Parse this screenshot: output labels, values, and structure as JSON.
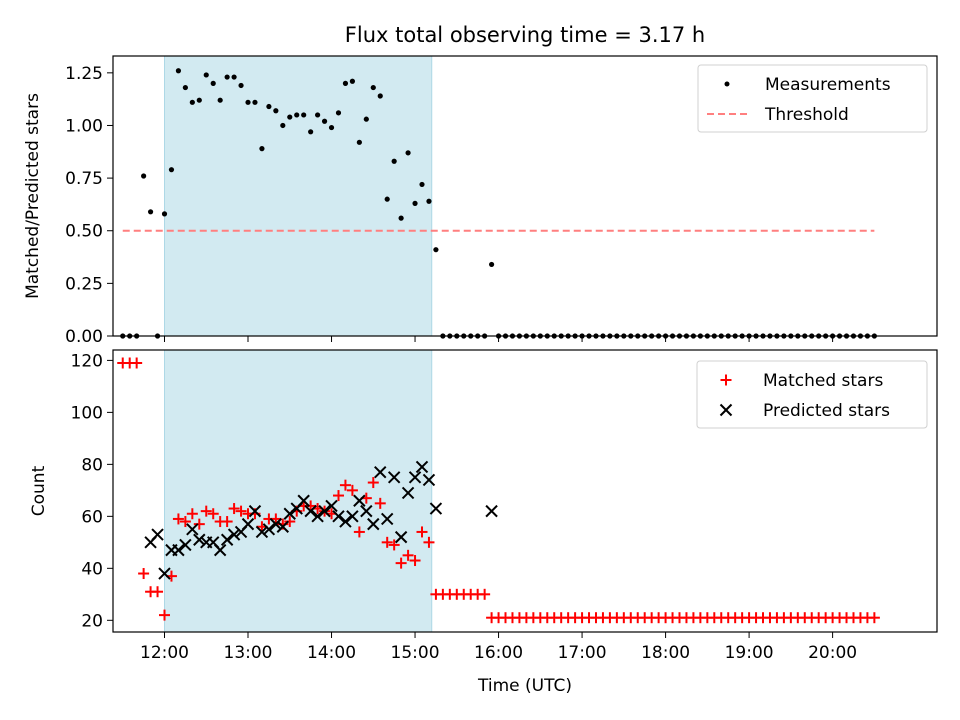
{
  "figure": {
    "title": "Flux total observing time = 3.17 h"
  },
  "colors": {
    "shade": "#add8e6",
    "measurement": "#000000",
    "threshold": "#ff7f7f",
    "matched": "#ff0000",
    "predicted": "#000000"
  },
  "chart_data": [
    {
      "type": "scatter",
      "title": "Flux total observing time = 3.17 h",
      "xlabel": "",
      "ylabel": "Matched/Predicted stars",
      "xlim": [
        "11:23",
        "21:15"
      ],
      "ylim": [
        0,
        1.33
      ],
      "yticks": [
        "0.00",
        "0.25",
        "0.50",
        "0.75",
        "1.00",
        "1.25"
      ],
      "xticks": [
        "12:00",
        "13:00",
        "14:00",
        "15:00",
        "16:00",
        "17:00",
        "18:00",
        "19:00",
        "20:00"
      ],
      "tick_labels_shown": false,
      "legend_position": "top-right",
      "shaded_interval": [
        "12:00",
        "15:12"
      ],
      "threshold": {
        "name": "Threshold",
        "y": 0.5,
        "x": [
          "11:30",
          "20:30"
        ],
        "style": "dashed"
      },
      "series": [
        {
          "name": "Measurements",
          "marker": "dot",
          "x": [
            "11:30",
            "11:35",
            "11:40",
            "11:45",
            "11:50",
            "11:55",
            "12:00",
            "12:05",
            "12:10",
            "12:15",
            "12:20",
            "12:25",
            "12:30",
            "12:35",
            "12:40",
            "12:45",
            "12:50",
            "12:55",
            "13:00",
            "13:05",
            "13:10",
            "13:15",
            "13:20",
            "13:25",
            "13:30",
            "13:35",
            "13:40",
            "13:45",
            "13:50",
            "13:55",
            "14:00",
            "14:05",
            "14:10",
            "14:15",
            "14:20",
            "14:25",
            "14:30",
            "14:35",
            "14:40",
            "14:45",
            "14:50",
            "14:55",
            "15:00",
            "15:05",
            "15:10",
            "15:15",
            "15:20",
            "15:25",
            "15:30",
            "15:35",
            "15:40",
            "15:45",
            "15:50",
            "15:55",
            "16:00",
            "16:05",
            "16:10",
            "16:15",
            "16:20",
            "16:25",
            "16:30",
            "16:35",
            "16:40",
            "16:45",
            "16:50",
            "16:55",
            "17:00",
            "17:05",
            "17:10",
            "17:15",
            "17:20",
            "17:25",
            "17:30",
            "17:35",
            "17:40",
            "17:45",
            "17:50",
            "17:55",
            "18:00",
            "18:05",
            "18:10",
            "18:15",
            "18:20",
            "18:25",
            "18:30",
            "18:35",
            "18:40",
            "18:45",
            "18:50",
            "18:55",
            "19:00",
            "19:05",
            "19:10",
            "19:15",
            "19:20",
            "19:25",
            "19:30",
            "19:35",
            "19:40",
            "19:45",
            "19:50",
            "19:55",
            "20:00",
            "20:05",
            "20:10",
            "20:15",
            "20:20",
            "20:25",
            "20:30"
          ],
          "y": [
            0,
            0,
            0,
            0.76,
            0.59,
            0,
            0.58,
            0.79,
            1.26,
            1.18,
            1.11,
            1.12,
            1.24,
            1.2,
            1.12,
            1.23,
            1.23,
            1.19,
            1.11,
            1.11,
            0.89,
            1.09,
            1.07,
            1.0,
            1.04,
            1.05,
            1.05,
            0.97,
            1.05,
            1.02,
            0.99,
            1.06,
            1.2,
            1.21,
            0.92,
            1.03,
            1.18,
            1.14,
            0.65,
            0.83,
            0.56,
            0.87,
            0.63,
            0.72,
            0.64,
            0.41,
            0,
            0,
            0,
            0,
            0,
            0,
            0,
            0.34,
            0,
            0,
            0,
            0,
            0,
            0,
            0,
            0,
            0,
            0,
            0,
            0,
            0,
            0,
            0,
            0,
            0,
            0,
            0,
            0,
            0,
            0,
            0,
            0,
            0,
            0,
            0,
            0,
            0,
            0,
            0,
            0,
            0,
            0,
            0,
            0,
            0,
            0,
            0,
            0,
            0,
            0,
            0,
            0,
            0,
            0,
            0,
            0,
            0,
            0,
            0,
            0,
            0,
            0,
            0
          ]
        }
      ]
    },
    {
      "type": "scatter",
      "title": "",
      "xlabel": "Time (UTC)",
      "ylabel": "Count",
      "xlim": [
        "11:23",
        "21:15"
      ],
      "ylim": [
        15.5,
        124
      ],
      "yticks": [
        "20",
        "40",
        "60",
        "80",
        "100",
        "120"
      ],
      "xticks": [
        "12:00",
        "13:00",
        "14:00",
        "15:00",
        "16:00",
        "17:00",
        "18:00",
        "19:00",
        "20:00"
      ],
      "legend_position": "top-right",
      "shaded_interval": [
        "12:00",
        "15:12"
      ],
      "series": [
        {
          "name": "Matched stars",
          "marker": "plus",
          "x": [
            "11:30",
            "11:35",
            "11:40",
            "11:45",
            "11:50",
            "11:55",
            "12:00",
            "12:05",
            "12:10",
            "12:15",
            "12:20",
            "12:25",
            "12:30",
            "12:35",
            "12:40",
            "12:45",
            "12:50",
            "12:55",
            "13:00",
            "13:05",
            "13:10",
            "13:15",
            "13:20",
            "13:25",
            "13:30",
            "13:35",
            "13:40",
            "13:45",
            "13:50",
            "13:55",
            "14:00",
            "14:05",
            "14:10",
            "14:15",
            "14:20",
            "14:25",
            "14:30",
            "14:35",
            "14:40",
            "14:45",
            "14:50",
            "14:55",
            "15:00",
            "15:05",
            "15:10",
            "15:15",
            "15:20",
            "15:25",
            "15:30",
            "15:35",
            "15:40",
            "15:45",
            "15:50",
            "15:55",
            "16:00",
            "16:05",
            "16:10",
            "16:15",
            "16:20",
            "16:25",
            "16:30",
            "16:35",
            "16:40",
            "16:45",
            "16:50",
            "16:55",
            "17:00",
            "17:05",
            "17:10",
            "17:15",
            "17:20",
            "17:25",
            "17:30",
            "17:35",
            "17:40",
            "17:45",
            "17:50",
            "17:55",
            "18:00",
            "18:05",
            "18:10",
            "18:15",
            "18:20",
            "18:25",
            "18:30",
            "18:35",
            "18:40",
            "18:45",
            "18:50",
            "18:55",
            "19:00",
            "19:05",
            "19:10",
            "19:15",
            "19:20",
            "19:25",
            "19:30",
            "19:35",
            "19:40",
            "19:45",
            "19:50",
            "19:55",
            "20:00",
            "20:05",
            "20:10",
            "20:15",
            "20:20",
            "20:25",
            "20:30"
          ],
          "y": [
            119,
            119,
            119,
            38,
            31,
            31,
            22,
            37,
            59,
            58,
            61,
            57,
            62,
            61,
            58,
            58,
            63,
            62,
            61,
            61,
            56,
            59,
            59,
            57,
            58,
            62,
            64,
            64,
            63,
            62,
            61,
            68,
            72,
            70,
            54,
            67,
            73,
            65,
            50,
            49,
            42,
            45,
            43,
            54,
            50,
            30,
            30,
            30,
            30,
            30,
            30,
            30,
            30,
            21,
            21,
            21,
            21,
            21,
            21,
            21,
            21,
            21,
            21,
            21,
            21,
            21,
            21,
            21,
            21,
            21,
            21,
            21,
            21,
            21,
            21,
            21,
            21,
            21,
            21,
            21,
            21,
            21,
            21,
            21,
            21,
            21,
            21,
            21,
            21,
            21,
            21,
            21,
            21,
            21,
            21,
            21,
            21,
            21,
            21,
            21,
            21,
            21,
            21,
            21,
            21,
            21,
            21,
            21,
            21
          ]
        },
        {
          "name": "Predicted stars",
          "marker": "x",
          "x": [
            "11:50",
            "11:55",
            "12:00",
            "12:05",
            "12:10",
            "12:15",
            "12:20",
            "12:25",
            "12:30",
            "12:35",
            "12:40",
            "12:45",
            "12:50",
            "12:55",
            "13:00",
            "13:05",
            "13:10",
            "13:15",
            "13:20",
            "13:25",
            "13:30",
            "13:35",
            "13:40",
            "13:45",
            "13:50",
            "13:55",
            "14:00",
            "14:05",
            "14:10",
            "14:15",
            "14:20",
            "14:25",
            "14:30",
            "14:35",
            "14:40",
            "14:45",
            "14:50",
            "14:55",
            "15:00",
            "15:05",
            "15:10",
            "15:15",
            "15:55"
          ],
          "y": [
            50,
            53,
            38,
            47,
            47,
            49,
            55,
            51,
            50,
            50,
            47,
            51,
            53,
            54,
            57,
            62,
            54,
            55,
            57,
            56,
            61,
            63,
            66,
            62,
            60,
            62,
            64,
            60,
            58,
            60,
            66,
            62,
            57,
            77,
            59,
            75,
            52,
            69,
            75,
            79,
            74,
            63,
            62
          ]
        }
      ]
    }
  ]
}
